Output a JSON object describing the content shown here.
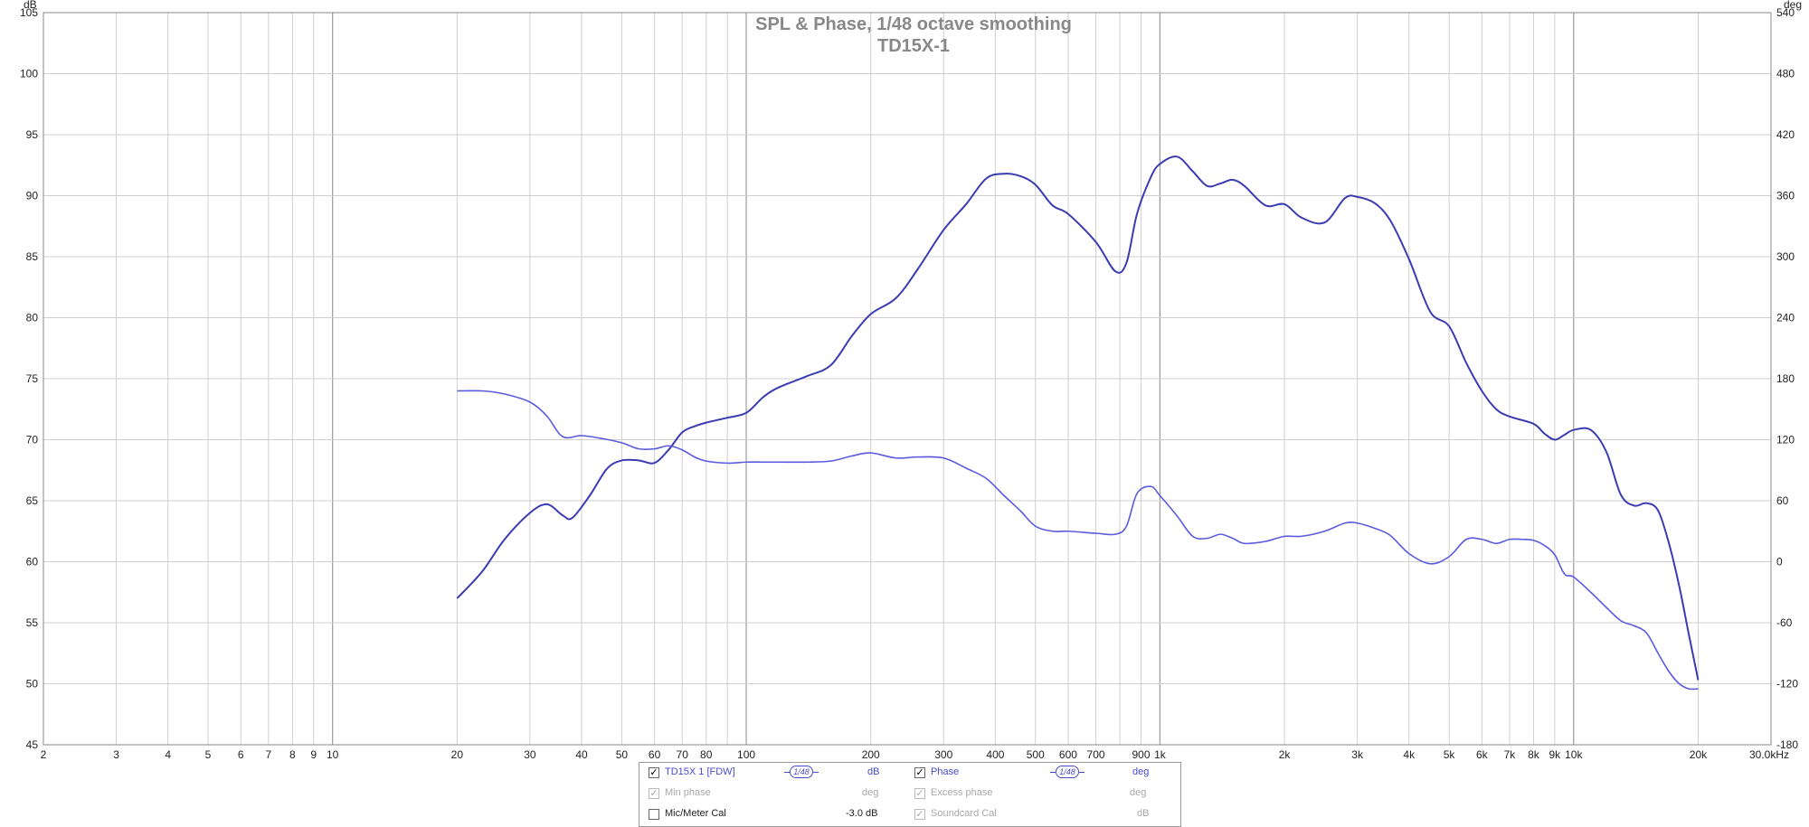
{
  "chart_data": {
    "type": "line",
    "title": "SPL & Phase, 1/48 octave smoothing",
    "subtitle": "TD15X-1",
    "y_unit_left": "dB",
    "y_unit_right": "deg",
    "x_unit": "Hz",
    "xscale": "log",
    "xlim": [
      2,
      30000
    ],
    "ylim_left": [
      45,
      105
    ],
    "ylim_right": [
      -180,
      540
    ],
    "grid": true,
    "x_ticks": [
      {
        "v": 2,
        "label": "2"
      },
      {
        "v": 3,
        "label": "3"
      },
      {
        "v": 4,
        "label": "4"
      },
      {
        "v": 5,
        "label": "5"
      },
      {
        "v": 6,
        "label": "6"
      },
      {
        "v": 7,
        "label": "7"
      },
      {
        "v": 8,
        "label": "8"
      },
      {
        "v": 9,
        "label": "9"
      },
      {
        "v": 10,
        "label": "10"
      },
      {
        "v": 20,
        "label": "20"
      },
      {
        "v": 30,
        "label": "30"
      },
      {
        "v": 40,
        "label": "40"
      },
      {
        "v": 50,
        "label": "50"
      },
      {
        "v": 60,
        "label": "60"
      },
      {
        "v": 70,
        "label": "70"
      },
      {
        "v": 80,
        "label": "80"
      },
      {
        "v": 100,
        "label": "100"
      },
      {
        "v": 200,
        "label": "200"
      },
      {
        "v": 300,
        "label": "300"
      },
      {
        "v": 400,
        "label": "400"
      },
      {
        "v": 500,
        "label": "500"
      },
      {
        "v": 600,
        "label": "600"
      },
      {
        "v": 700,
        "label": "700"
      },
      {
        "v": 900,
        "label": "900"
      },
      {
        "v": 1000,
        "label": "1k"
      },
      {
        "v": 2000,
        "label": "2k"
      },
      {
        "v": 3000,
        "label": "3k"
      },
      {
        "v": 4000,
        "label": "4k"
      },
      {
        "v": 5000,
        "label": "5k"
      },
      {
        "v": 6000,
        "label": "6k"
      },
      {
        "v": 7000,
        "label": "7k"
      },
      {
        "v": 8000,
        "label": "8k"
      },
      {
        "v": 9000,
        "label": "9k"
      },
      {
        "v": 10000,
        "label": "10k"
      },
      {
        "v": 20000,
        "label": "20k"
      },
      {
        "v": 30000,
        "label": "30.0kHz"
      }
    ],
    "y_ticks_left": [
      45,
      50,
      55,
      60,
      65,
      70,
      75,
      80,
      85,
      90,
      95,
      100,
      105
    ],
    "y_ticks_right": [
      -180,
      -120,
      -60,
      0,
      60,
      120,
      180,
      240,
      300,
      360,
      420,
      480,
      540
    ],
    "series": [
      {
        "name": "TD15X 1 [FDW]",
        "axis": "left",
        "color": "#3b3bb3",
        "x": [
          20,
          23,
          26,
          30,
          33,
          36,
          38,
          42,
          46,
          50,
          55,
          60,
          65,
          70,
          75,
          80,
          90,
          100,
          110,
          120,
          140,
          160,
          180,
          200,
          230,
          260,
          300,
          340,
          380,
          420,
          460,
          500,
          550,
          600,
          700,
          780,
          830,
          880,
          950,
          1000,
          1100,
          1200,
          1300,
          1400,
          1500,
          1600,
          1800,
          2000,
          2200,
          2500,
          2800,
          3000,
          3300,
          3600,
          4000,
          4500,
          5000,
          5500,
          6000,
          6500,
          7000,
          8000,
          8500,
          9000,
          9500,
          10000,
          11000,
          12000,
          13000,
          14000,
          15000,
          16000,
          17000,
          18000,
          19000,
          20000
        ],
        "values": [
          57.0,
          59.2,
          61.8,
          64.0,
          64.7,
          63.8,
          63.6,
          65.5,
          67.6,
          68.3,
          68.3,
          68.1,
          69.2,
          70.6,
          71.1,
          71.4,
          71.8,
          72.2,
          73.5,
          74.3,
          75.2,
          76.1,
          78.5,
          80.3,
          81.6,
          84.0,
          87.2,
          89.3,
          91.4,
          91.8,
          91.6,
          90.9,
          89.2,
          88.5,
          86.2,
          83.8,
          84.5,
          88.5,
          91.5,
          92.6,
          93.2,
          92.0,
          90.8,
          91.0,
          91.3,
          90.8,
          89.2,
          89.3,
          88.2,
          87.8,
          89.8,
          89.9,
          89.4,
          88.0,
          84.8,
          80.5,
          79.3,
          76.3,
          74.0,
          72.5,
          71.9,
          71.3,
          70.5,
          70.0,
          70.4,
          70.8,
          70.8,
          69.0,
          65.5,
          64.6,
          64.8,
          64.2,
          61.5,
          58.0,
          54.0,
          50.3
        ]
      },
      {
        "name": "Phase",
        "axis": "right",
        "color": "#5a5ae0",
        "x": [
          20,
          23,
          26,
          30,
          33,
          36,
          40,
          45,
          50,
          55,
          60,
          65,
          70,
          75,
          80,
          90,
          100,
          110,
          120,
          140,
          160,
          180,
          200,
          230,
          260,
          300,
          340,
          380,
          420,
          460,
          500,
          550,
          600,
          700,
          780,
          830,
          880,
          950,
          1000,
          1100,
          1200,
          1300,
          1400,
          1500,
          1600,
          1800,
          2000,
          2200,
          2500,
          2800,
          3000,
          3300,
          3600,
          4000,
          4500,
          5000,
          5500,
          6000,
          6500,
          7000,
          7500,
          8000,
          8500,
          9000,
          9500,
          10000,
          11000,
          12000,
          13000,
          14000,
          15000,
          16000,
          17000,
          18000,
          19000,
          20000
        ],
        "values": [
          168,
          168,
          165,
          157,
          143,
          123,
          124,
          121,
          117,
          111,
          111,
          114,
          110,
          103,
          99,
          97,
          98,
          98,
          98,
          98,
          99,
          104,
          107,
          102,
          103,
          102,
          92,
          82,
          65,
          50,
          35,
          30,
          30,
          28,
          27,
          35,
          67,
          74,
          65,
          45,
          25,
          23,
          27,
          23,
          18,
          20,
          25,
          25,
          30,
          38,
          38,
          33,
          26,
          8,
          -2,
          5,
          22,
          22,
          18,
          22,
          22,
          21,
          16,
          7,
          -12,
          -15,
          -30,
          -45,
          -58,
          -63,
          -70,
          -90,
          -108,
          -120,
          -125,
          -125
        ]
      }
    ]
  },
  "legend": {
    "rows": [
      {
        "checked": true,
        "enabled": true,
        "label": "TD15X 1 [FDW]",
        "smoothing": "1/48",
        "unit": "dB",
        "checked2": true,
        "enabled2": true,
        "label2": "Phase",
        "smoothing2": "1/48",
        "unit2": "deg"
      },
      {
        "checked": true,
        "enabled": false,
        "label": "Min phase",
        "unit": "deg",
        "checked2": true,
        "enabled2": false,
        "label2": "Excess phase",
        "unit2": "deg"
      },
      {
        "checked": false,
        "enabled": true,
        "label": "Mic/Meter Cal",
        "unit": "-3.0 dB",
        "checked2": true,
        "enabled2": false,
        "label2": "Soundcard Cal",
        "unit2": "dB"
      }
    ]
  }
}
